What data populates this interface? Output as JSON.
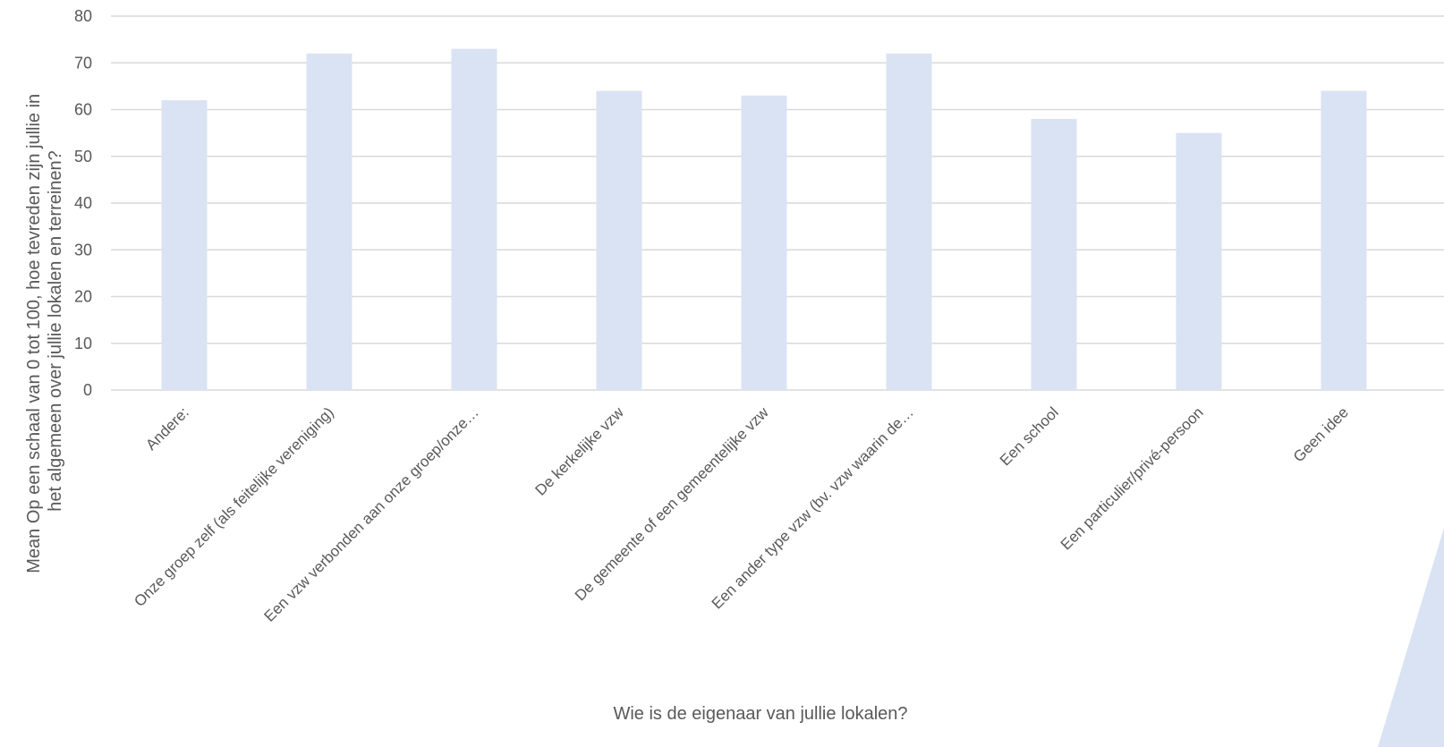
{
  "chart_data": {
    "type": "bar",
    "title": "",
    "xlabel": "Wie is de eigenaar van jullie lokalen?",
    "ylabel_lines": [
      "Mean Op een schaal van 0 tot 100, hoe tevreden zijn jullie in",
      "het algemeen over jullie lokalen en terreinen?"
    ],
    "categories": [
      "Andere:",
      "Onze groep zelf (als feitelijke vereniging)",
      "Een vzw verbonden aan onze groep/onze…",
      "De kerkelijke vzw",
      "De gemeente of een gemeentelijke vzw",
      "Een ander type vzw (bv. vzw waarin de…",
      "Een school",
      "Een particulier/privé-persoon",
      "Geen idee"
    ],
    "values": [
      62,
      72,
      73,
      64,
      63,
      72,
      58,
      55,
      64
    ],
    "ylim": [
      0,
      80
    ],
    "yticks": [
      "0",
      "10",
      "20",
      "30",
      "40",
      "50",
      "60",
      "70",
      "80"
    ],
    "grid": true,
    "bar_color": "#dae3f3",
    "grid_color": "#d9d9d9",
    "text_color": "#595959"
  }
}
